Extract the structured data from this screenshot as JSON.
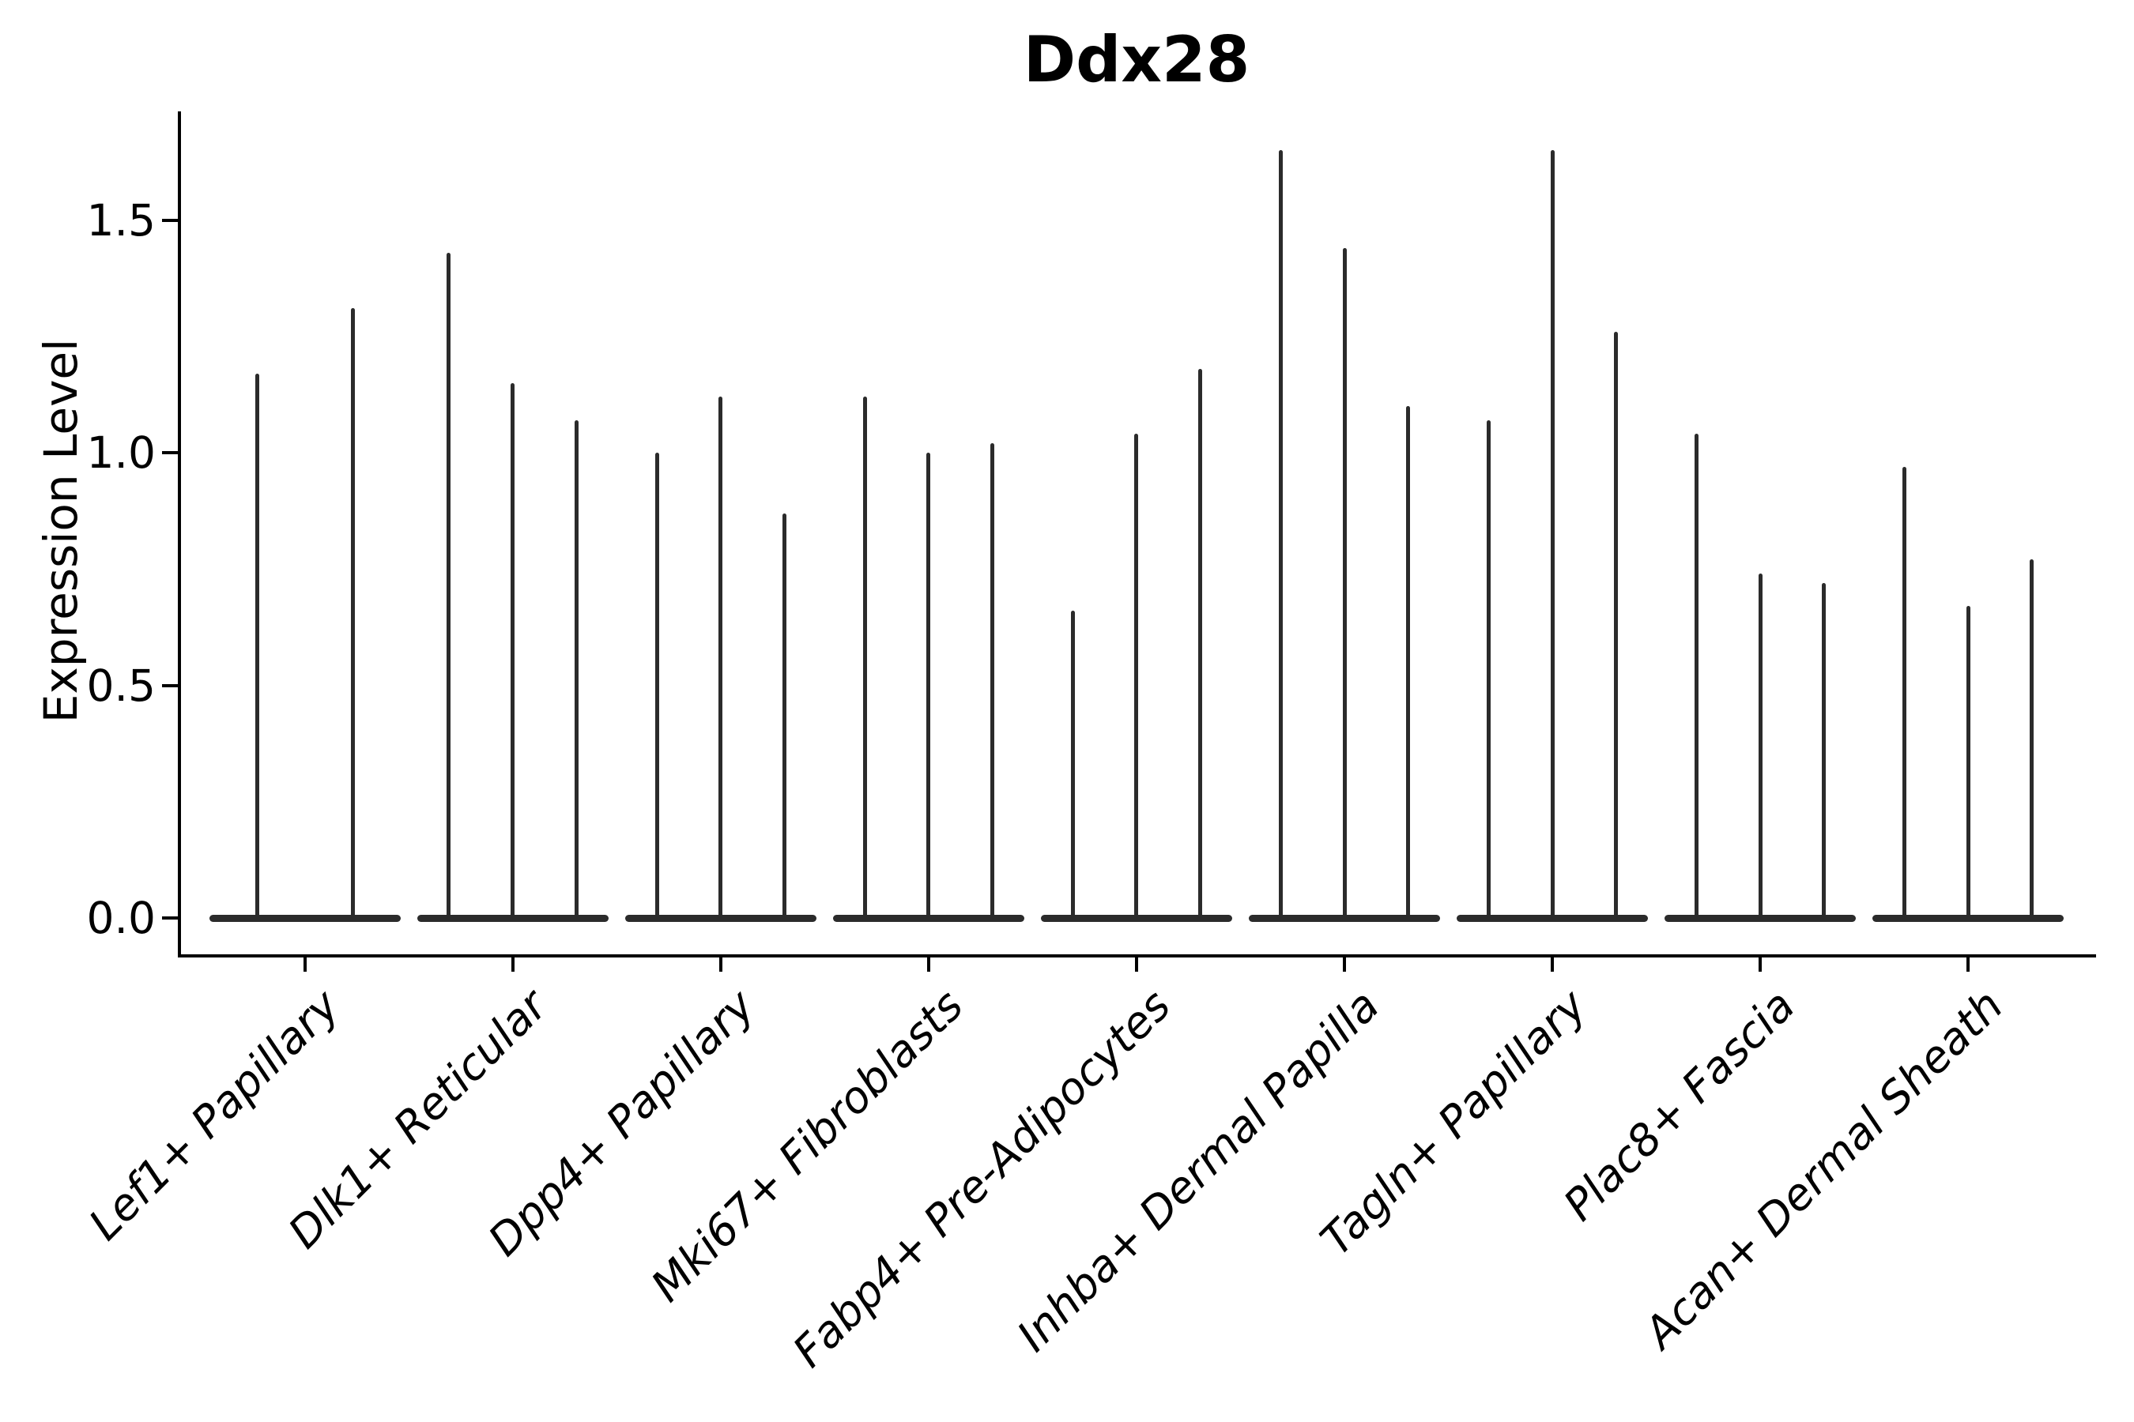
{
  "title": "Ddx28",
  "ylabel": "Expression Level",
  "colors": {
    "violin": "#2b2b2b",
    "axis": "#000000",
    "text": "#000000",
    "background": "#ffffff"
  },
  "chart_data": {
    "type": "violin",
    "title": "Ddx28",
    "xlabel": "",
    "ylabel": "Expression Level",
    "ylim": [
      -0.08,
      1.73
    ],
    "yticks": [
      0.0,
      0.5,
      1.0,
      1.5
    ],
    "ytick_labels": [
      "0.0",
      "0.5",
      "1.0",
      "1.5"
    ],
    "grid": false,
    "legend_position": "none",
    "description": "Violin plot of gene expression; each category shows very thin spike-like violins (distribution concentrated at 0 with a flat wide base) rising to the listed maximum expression values.",
    "categories": [
      "Lef1+ Papillary",
      "Dlk1+ Reticular",
      "Dpp4+ Papillary",
      "Mki67+ Fibroblasts",
      "Fabp4+ Pre-Adipocytes",
      "Inhba+ Dermal Papilla",
      "Tagln+ Papillary",
      "Plac8+ Fascia",
      "Acan+ Dermal Sheath"
    ],
    "series": [
      {
        "name": "Lef1+ Papillary",
        "violin_max_values": [
          1.17,
          1.31
        ]
      },
      {
        "name": "Dlk1+ Reticular",
        "violin_max_values": [
          1.43,
          1.15,
          1.07
        ]
      },
      {
        "name": "Dpp4+ Papillary",
        "violin_max_values": [
          1.0,
          1.12,
          0.87
        ]
      },
      {
        "name": "Mki67+ Fibroblasts",
        "violin_max_values": [
          1.12,
          1.0,
          1.02
        ]
      },
      {
        "name": "Fabp4+ Pre-Adipocytes",
        "violin_max_values": [
          0.66,
          1.04,
          1.18
        ]
      },
      {
        "name": "Inhba+ Dermal Papilla",
        "violin_max_values": [
          1.65,
          1.44,
          1.1
        ]
      },
      {
        "name": "Tagln+ Papillary",
        "violin_max_values": [
          1.07,
          1.65,
          1.26
        ]
      },
      {
        "name": "Plac8+ Fascia",
        "violin_max_values": [
          1.04,
          0.74,
          0.72
        ]
      },
      {
        "name": "Acan+ Dermal Sheath",
        "violin_max_values": [
          0.97,
          0.67,
          0.77
        ]
      }
    ]
  }
}
